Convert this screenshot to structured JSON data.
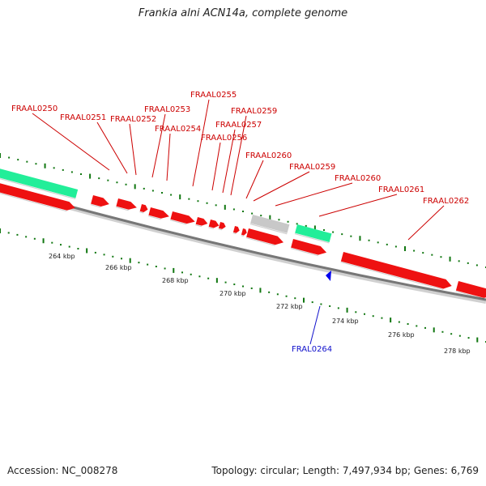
{
  "title": "Frankia alni ACN14a, complete genome",
  "footer": {
    "accession": "Accession: NC_008278",
    "summary": "Topology: circular; Length: 7,497,934 bp; Genes: 6,769"
  },
  "colors": {
    "cds": "#ee1111",
    "rna": "#22ee99",
    "other": "#c8c8c8",
    "backbone": "#777777",
    "ticks": "#117711",
    "forward_label": "#cc0000",
    "reverse_label": "#1111cc"
  },
  "scale_labels": [
    "264 kbp",
    "266 kbp",
    "268 kbp",
    "270 kbp",
    "272 kbp",
    "274 kbp",
    "276 kbp",
    "278 kbp"
  ],
  "forward_labels": [
    "FRAAL0250",
    "FRAAL0251",
    "FRAAL0252",
    "FRAAL0253",
    "FRAAL0254",
    "FRAAL0255",
    "FRAAL0256",
    "FRAAL0257",
    "FRAAL0259",
    "FRAAL0260",
    "FRAAL0259",
    "FRAAL0260",
    "FRAAL0261",
    "FRAAL0262"
  ],
  "reverse_labels": [
    "FRAL0264"
  ]
}
